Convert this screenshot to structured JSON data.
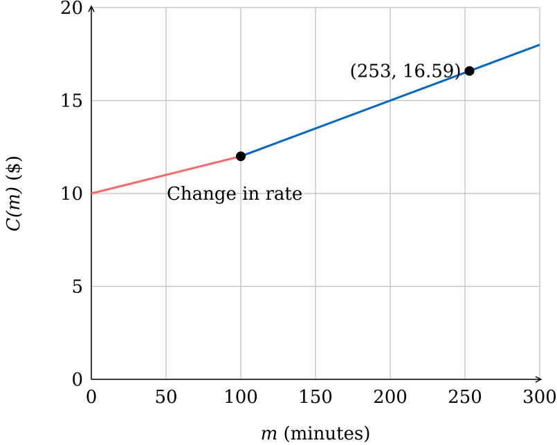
{
  "chart_data": {
    "type": "line",
    "xlabel": "m (minutes)",
    "xlabel_var": "m",
    "xlabel_unit": " (minutes)",
    "ylabel_var": "C(m)",
    "ylabel_unit": " ($)",
    "xlim": [
      0,
      300
    ],
    "ylim": [
      0,
      20
    ],
    "xticks": [
      0,
      50,
      100,
      150,
      200,
      250,
      300
    ],
    "yticks": [
      0,
      5,
      10,
      15,
      20
    ],
    "grid": true,
    "series": [
      {
        "name": "Change in rate",
        "color": "#ff6666",
        "x": [
          0,
          100
        ],
        "y": [
          10,
          12
        ]
      },
      {
        "color": "#0066cc",
        "x": [
          100,
          300
        ],
        "y": [
          12,
          18
        ]
      }
    ],
    "points": [
      {
        "x": 100,
        "y": 12
      },
      {
        "x": 253,
        "y": 16.59,
        "label": "(253, 16.59)"
      }
    ],
    "annotations": [
      {
        "text": "Change in rate",
        "x": 50,
        "y": 10
      }
    ]
  }
}
